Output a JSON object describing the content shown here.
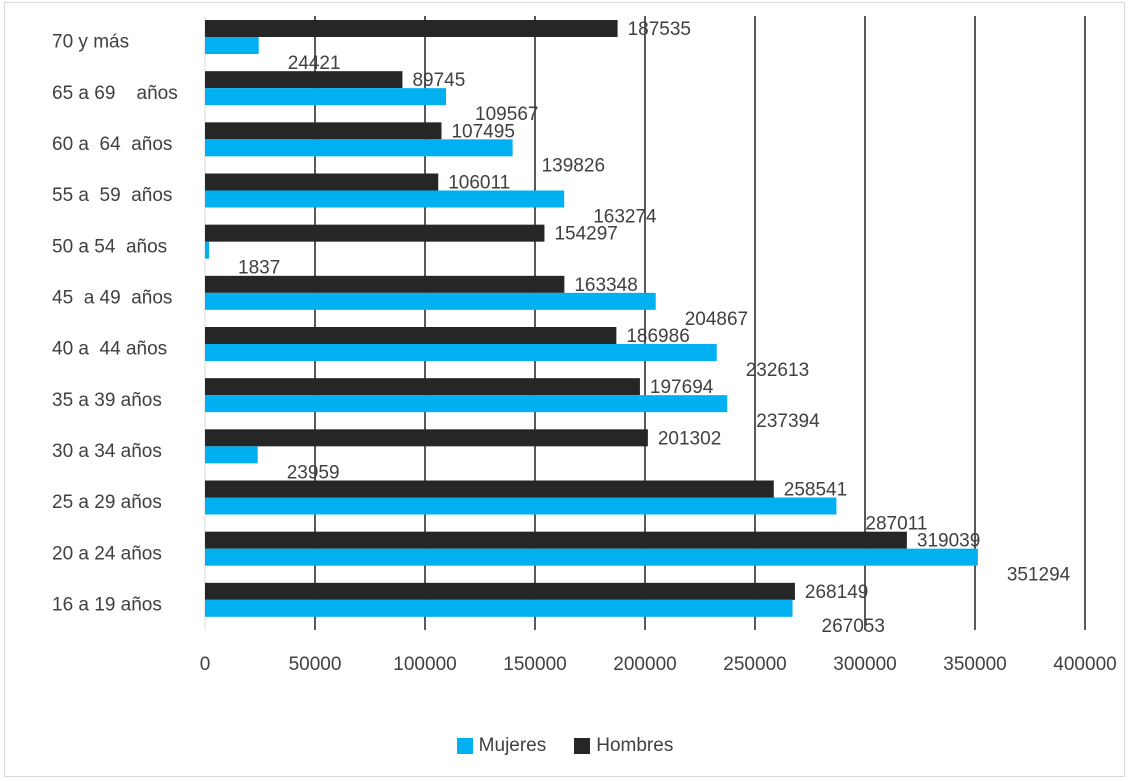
{
  "chart_data": {
    "type": "bar",
    "orientation": "horizontal",
    "categories": [
      "70 y más",
      "65 a 69    años",
      "60 a  64  años",
      "55 a  59  años",
      "50 a 54  años",
      "45  a 49  años",
      "40 a  44 años",
      "35 a 39 años",
      "30 a 34 años",
      "25 a 29 años",
      "20 a 24 años",
      "16 a 19 años"
    ],
    "series": [
      {
        "name": "Hombres",
        "color": "#262626",
        "values": [
          187535,
          89745,
          107495,
          106011,
          154297,
          163348,
          186986,
          197694,
          201302,
          258541,
          319039,
          268149
        ]
      },
      {
        "name": "Mujeres",
        "color": "#00b0f0",
        "values": [
          24421,
          109567,
          139826,
          163274,
          1837,
          204867,
          232613,
          237394,
          23959,
          287011,
          351294,
          267053
        ]
      }
    ],
    "xlim": [
      0,
      400000
    ],
    "xticks": [
      "0",
      "50000",
      "100000",
      "150000",
      "200000",
      "250000",
      "300000",
      "350000",
      "400000"
    ],
    "grid": "vertical",
    "legend_position": "bottom"
  },
  "legend": {
    "mujeres_label": "Mujeres",
    "hombres_label": "Hombres",
    "mujeres_color": "#00b0f0",
    "hombres_color": "#262626"
  }
}
